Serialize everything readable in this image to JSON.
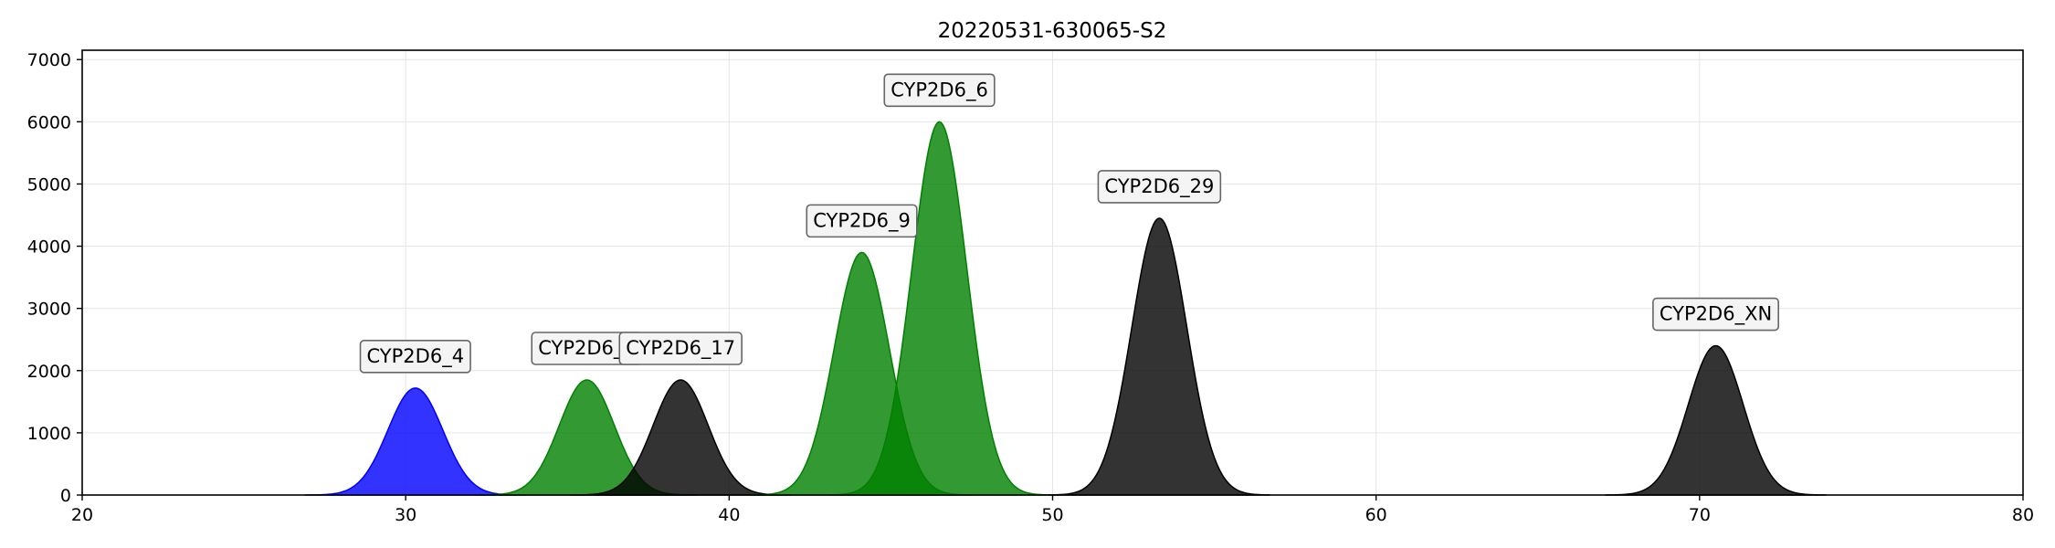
{
  "chart_data": {
    "type": "area",
    "title": "20220531-630065-S2",
    "xlabel": "",
    "ylabel": "",
    "xlim": [
      20,
      80
    ],
    "ylim": [
      0,
      7150
    ],
    "grid": true,
    "x_ticks": [
      20,
      30,
      40,
      50,
      60,
      70,
      80
    ],
    "y_ticks": [
      0,
      1000,
      2000,
      3000,
      4000,
      5000,
      6000,
      7000
    ],
    "series": [
      {
        "label": "CYP2D6_4",
        "center": 30.3,
        "height": 1720,
        "sigma": 0.85,
        "color": "#0000ff"
      },
      {
        "label": "CYP2D6_3",
        "center": 35.6,
        "height": 1850,
        "sigma": 0.85,
        "color": "#008000"
      },
      {
        "label": "CYP2D6_17",
        "center": 38.5,
        "height": 1850,
        "sigma": 0.85,
        "color": "#000000"
      },
      {
        "label": "CYP2D6_9",
        "center": 44.1,
        "height": 3900,
        "sigma": 0.85,
        "color": "#008000"
      },
      {
        "label": "CYP2D6_6",
        "center": 46.5,
        "height": 6000,
        "sigma": 0.85,
        "color": "#008000"
      },
      {
        "label": "CYP2D6_29",
        "center": 53.3,
        "height": 4450,
        "sigma": 0.85,
        "color": "#000000"
      },
      {
        "label": "CYP2D6_XN",
        "center": 70.5,
        "height": 2400,
        "sigma": 0.85,
        "color": "#000000"
      }
    ]
  }
}
